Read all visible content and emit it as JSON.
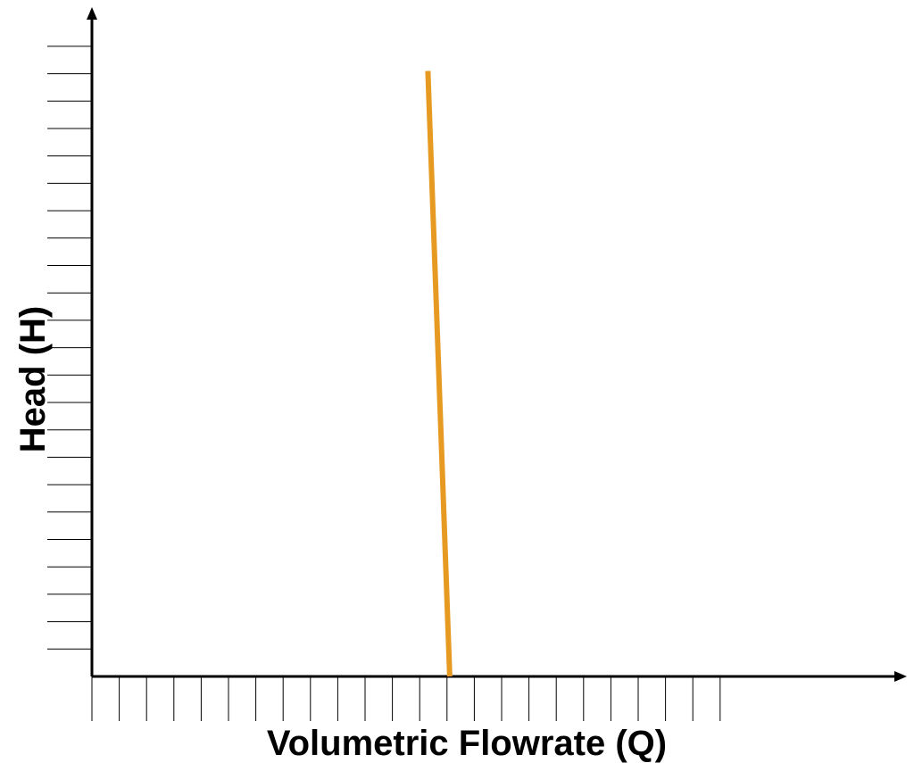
{
  "chart_data": {
    "type": "line",
    "title": "",
    "xlabel": "Volumetric Flowrate (Q)",
    "ylabel": "Head (H)",
    "xlim": [
      0,
      30
    ],
    "ylim": [
      0,
      23
    ],
    "x_ticks_count": 23,
    "y_ticks_count": 23,
    "grid": false,
    "legend": "none",
    "series": [
      {
        "color": "#E69A22",
        "points": [
          {
            "x": 12.3,
            "y": 22.1
          },
          {
            "x": 13.1,
            "y": 0
          }
        ]
      }
    ]
  }
}
